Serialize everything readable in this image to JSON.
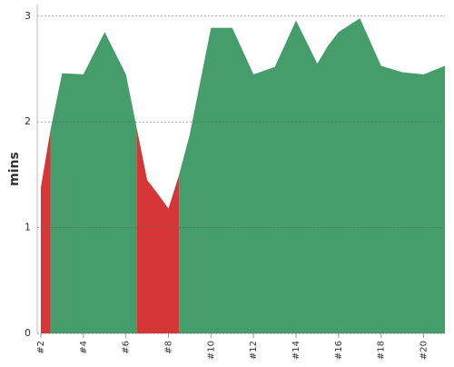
{
  "chart_data": {
    "type": "area",
    "y_label": "mins",
    "x": [
      2,
      2.45,
      3,
      4,
      5,
      6,
      6.5,
      7,
      7.5,
      8,
      8.5,
      9,
      10,
      11,
      12,
      13,
      14,
      15,
      15.5,
      16,
      17,
      18,
      19,
      20,
      21
    ],
    "series": [
      {
        "color": "#d63637",
        "values": [
          1.38,
          1.92,
          null,
          null,
          null,
          null,
          1.95,
          1.45,
          1.32,
          1.18,
          1.5,
          null,
          null,
          null,
          null,
          null,
          null,
          null,
          null,
          null,
          null,
          null,
          null,
          null,
          null
        ]
      },
      {
        "color": "#449d6b",
        "values": [
          null,
          1.92,
          2.46,
          2.45,
          2.85,
          2.45,
          1.95,
          null,
          null,
          null,
          1.5,
          1.88,
          2.89,
          2.89,
          2.45,
          2.52,
          2.96,
          2.55,
          2.72,
          2.85,
          2.98,
          2.53,
          2.47,
          2.45,
          2.53
        ]
      }
    ],
    "xlim": [
      2,
      21
    ],
    "xticks": [
      {
        "value": 2,
        "label": "#2"
      },
      {
        "value": 4,
        "label": "#4"
      },
      {
        "value": 6,
        "label": "#6"
      },
      {
        "value": 8,
        "label": "#8"
      },
      {
        "value": 10,
        "label": "#10"
      },
      {
        "value": 12,
        "label": "#12"
      },
      {
        "value": 14,
        "label": "#14"
      },
      {
        "value": 16,
        "label": "#16"
      },
      {
        "value": 18,
        "label": "#18"
      },
      {
        "value": 20,
        "label": "#20"
      }
    ],
    "ylim": [
      0,
      3.11
    ],
    "yticks": [
      0,
      1,
      2,
      3
    ],
    "grid": true
  }
}
